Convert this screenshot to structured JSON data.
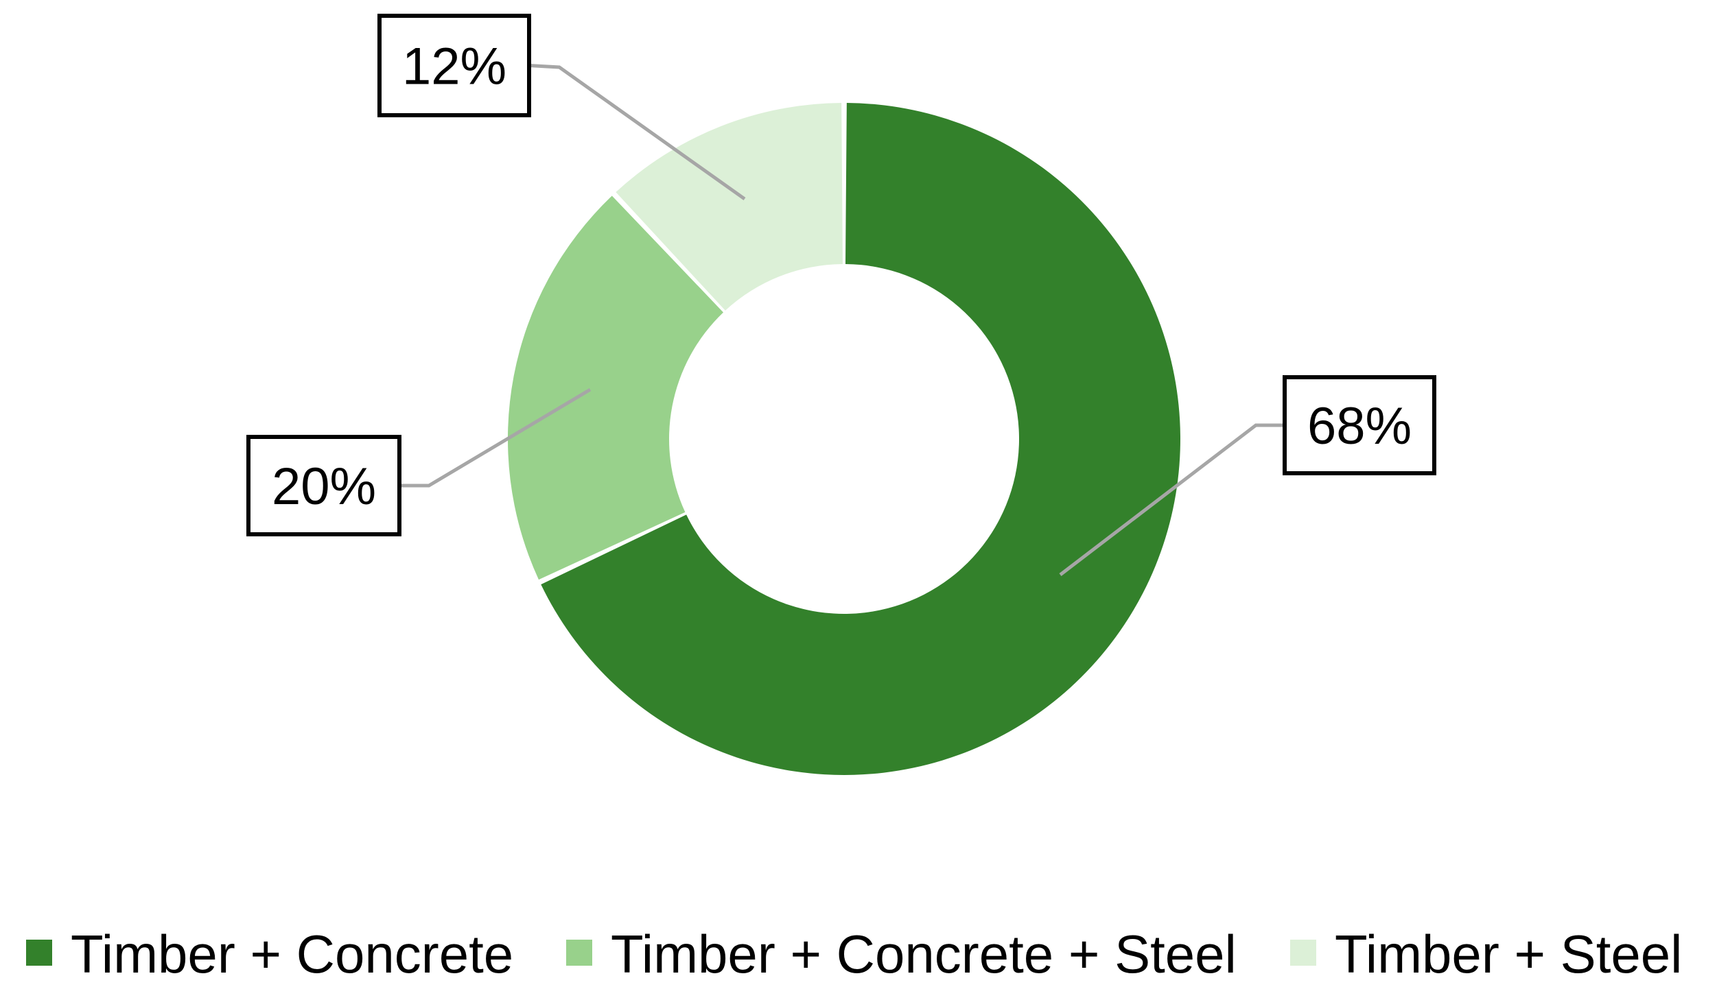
{
  "chart_data": {
    "type": "pie",
    "variant": "donut",
    "title": "",
    "categories": [
      "Timber + Concrete",
      "Timber + Concrete + Steel",
      "Timber + Steel"
    ],
    "values": [
      68,
      20,
      12
    ],
    "unit": "%",
    "labels": [
      "68%",
      "20%",
      "12%"
    ],
    "colors": [
      "#33812B",
      "#98D18B",
      "#DCF0D7"
    ],
    "legend_position": "bottom",
    "grid": false
  }
}
